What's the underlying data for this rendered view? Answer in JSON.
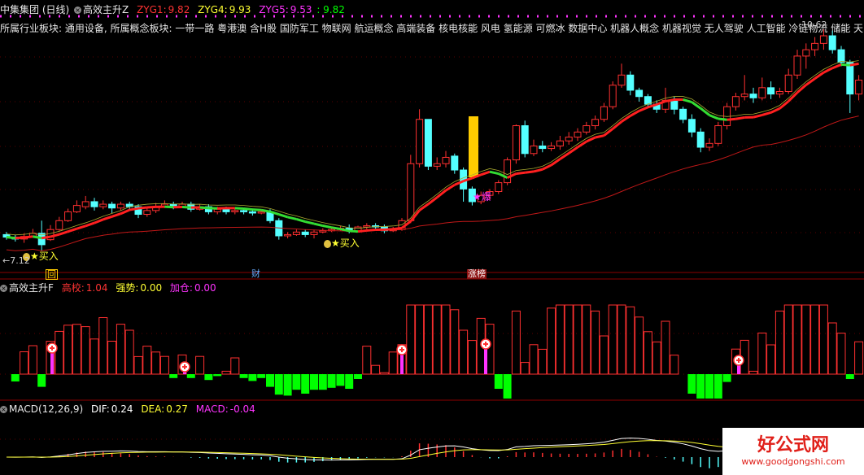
{
  "colors": {
    "bg": "#000000",
    "up": "#ff3030",
    "down": "#54ffff",
    "ma_up": "#ff2020",
    "ma_down": "#33dd33",
    "ma_slow": "#c01818",
    "yellow": "#ffff33",
    "magenta": "#ff33ff",
    "green_bar": "#00ff00",
    "white": "#ffffff",
    "dotted": "#ff33ff"
  },
  "main_panel": {
    "stock_name": "中集集团 (日线)",
    "indicator_name": "高效主升Z",
    "zyg1_label": "ZYG1:",
    "zyg1_value": "9.82",
    "zyg4_label": "ZYG4:",
    "zyg4_value": "9.93",
    "zyg5_label": "ZYG5:",
    "zyg5_value": "9.53",
    "extra_value": ": 9.82",
    "sector_text": "所属行业板块: 通用设备, 所属概念板块: 一带一路 粤港澳 含H股 国防军工 物联网 航运概念 高端装备 核电核能 风电 氢能源 可燃冰 数据中心 机器人概念 机器视觉 无人驾驶 人工智能 冷链物流 储能 天",
    "low_price_label": "←7.12",
    "high_price_label": "10.62",
    "signals": [
      {
        "text": "★买入",
        "id": "buy1"
      },
      {
        "text": "★买入",
        "id": "buy2"
      },
      {
        "text": "★爆",
        "id": "burst"
      }
    ],
    "event_tags": [
      {
        "text": "回",
        "id": "tag-hui"
      },
      {
        "text": "财",
        "id": "tag-cai"
      },
      {
        "text": "涨榜",
        "id": "tag-zhangbang"
      }
    ]
  },
  "mid_panel": {
    "indicator_name": "高效主升F",
    "gaoxiao_label": "高校:",
    "gaoxiao_value": "1.04",
    "qiangshi_label": "强势:",
    "qiangshi_value": "0.00",
    "jiacang_label": "加仓:",
    "jiacang_value": "0.00"
  },
  "macd_panel": {
    "indicator_name": "MACD(12,26,9)",
    "dif_label": "DIF:",
    "dif_value": "0.24",
    "dea_label": "DEA:",
    "dea_value": "0.27",
    "macd_label": "MACD:",
    "macd_value": "-0.04"
  },
  "watermark": {
    "title": "好公式网",
    "url": "www.goodgongshi.com"
  },
  "chart_data": {
    "type": "candlestick",
    "price_range": [
      7.0,
      10.7
    ],
    "candles": [
      [
        7.38,
        7.34,
        7.42,
        7.3
      ],
      [
        7.34,
        7.31,
        7.38,
        7.27
      ],
      [
        7.31,
        7.35,
        7.4,
        7.25
      ],
      [
        7.35,
        7.4,
        7.47,
        7.33
      ],
      [
        7.4,
        7.22,
        7.6,
        7.12
      ],
      [
        7.3,
        7.46,
        7.53,
        7.28
      ],
      [
        7.46,
        7.6,
        7.66,
        7.44
      ],
      [
        7.6,
        7.74,
        7.79,
        7.58
      ],
      [
        7.74,
        7.84,
        7.92,
        7.72
      ],
      [
        7.82,
        7.9,
        7.99,
        7.78
      ],
      [
        7.9,
        7.82,
        7.96,
        7.76
      ],
      [
        7.82,
        7.86,
        7.92,
        7.78
      ],
      [
        7.86,
        7.8,
        7.9,
        7.72
      ],
      [
        7.8,
        7.86,
        7.9,
        7.76
      ],
      [
        7.86,
        7.82,
        7.9,
        7.77
      ],
      [
        7.82,
        7.7,
        7.86,
        7.64
      ],
      [
        7.7,
        7.76,
        7.8,
        7.66
      ],
      [
        7.76,
        7.82,
        7.88,
        7.72
      ],
      [
        7.82,
        7.86,
        7.92,
        7.8
      ],
      [
        7.86,
        7.82,
        7.9,
        7.78
      ],
      [
        7.82,
        7.86,
        7.9,
        7.8
      ],
      [
        7.86,
        7.78,
        7.9,
        7.74
      ],
      [
        7.78,
        7.82,
        7.86,
        7.76
      ],
      [
        7.82,
        7.74,
        7.86,
        7.7
      ],
      [
        7.74,
        7.78,
        7.82,
        7.7
      ],
      [
        7.78,
        7.74,
        7.82,
        7.7
      ],
      [
        7.74,
        7.76,
        7.8,
        7.7
      ],
      [
        7.76,
        7.74,
        7.8,
        7.7
      ],
      [
        7.74,
        7.72,
        7.78,
        7.68
      ],
      [
        7.72,
        7.74,
        7.78,
        7.7
      ],
      [
        7.74,
        7.6,
        7.78,
        7.56
      ],
      [
        7.6,
        7.36,
        7.64,
        7.3
      ],
      [
        7.36,
        7.38,
        7.42,
        7.32
      ],
      [
        7.38,
        7.42,
        7.46,
        7.36
      ],
      [
        7.42,
        7.38,
        7.46,
        7.34
      ],
      [
        7.38,
        7.42,
        7.46,
        7.32
      ],
      [
        7.42,
        7.44,
        7.48,
        7.4
      ],
      [
        7.44,
        7.46,
        7.5,
        7.42
      ],
      [
        7.46,
        7.48,
        7.52,
        7.44
      ],
      [
        7.48,
        7.44,
        7.54,
        7.4
      ],
      [
        7.44,
        7.5,
        7.52,
        7.42
      ],
      [
        7.5,
        7.52,
        7.56,
        7.46
      ],
      [
        7.52,
        7.5,
        7.56,
        7.46
      ],
      [
        7.5,
        7.44,
        7.54,
        7.4
      ],
      [
        7.44,
        7.46,
        7.5,
        7.42
      ],
      [
        7.46,
        7.6,
        7.64,
        7.44
      ],
      [
        7.6,
        8.5,
        8.64,
        7.56
      ],
      [
        8.5,
        9.2,
        9.36,
        8.44
      ],
      [
        9.2,
        8.46,
        9.2,
        8.4
      ],
      [
        8.46,
        8.5,
        8.6,
        8.4
      ],
      [
        8.5,
        8.6,
        8.7,
        8.44
      ],
      [
        8.62,
        8.4,
        8.66,
        8.34
      ],
      [
        8.4,
        8.1,
        8.44,
        7.9
      ],
      [
        8.1,
        7.9,
        8.14,
        7.84
      ],
      [
        7.9,
        8.0,
        8.06,
        7.86
      ],
      [
        8.0,
        8.06,
        8.1,
        7.92
      ],
      [
        8.06,
        8.2,
        8.24,
        8.02
      ],
      [
        8.2,
        8.56,
        8.6,
        8.16
      ],
      [
        8.56,
        9.1,
        9.12,
        8.5
      ],
      [
        9.1,
        8.66,
        9.18,
        8.6
      ],
      [
        8.66,
        8.78,
        8.88,
        8.62
      ],
      [
        8.78,
        8.74,
        8.86,
        8.68
      ],
      [
        8.74,
        8.78,
        8.84,
        8.7
      ],
      [
        8.78,
        8.86,
        8.94,
        8.72
      ],
      [
        8.86,
        8.92,
        9.0,
        8.8
      ],
      [
        8.92,
        9.0,
        9.06,
        8.86
      ],
      [
        9.0,
        9.1,
        9.16,
        8.96
      ],
      [
        9.1,
        9.2,
        9.26,
        9.04
      ],
      [
        9.2,
        9.4,
        9.46,
        9.16
      ],
      [
        9.4,
        9.74,
        9.8,
        9.36
      ],
      [
        9.74,
        9.9,
        10.08,
        9.7
      ],
      [
        9.9,
        9.66,
        9.96,
        9.58
      ],
      [
        9.66,
        9.56,
        9.7,
        9.48
      ],
      [
        9.56,
        9.44,
        9.6,
        9.38
      ],
      [
        9.44,
        9.36,
        9.5,
        9.3
      ],
      [
        9.36,
        9.5,
        9.7,
        9.3
      ],
      [
        9.5,
        9.36,
        9.56,
        9.28
      ],
      [
        9.36,
        9.2,
        9.4,
        9.14
      ],
      [
        9.2,
        9.0,
        9.28,
        8.92
      ],
      [
        9.0,
        8.76,
        9.06,
        8.68
      ],
      [
        8.76,
        8.82,
        8.9,
        8.7
      ],
      [
        8.82,
        9.1,
        9.16,
        8.78
      ],
      [
        9.1,
        9.4,
        9.46,
        9.04
      ],
      [
        9.4,
        9.56,
        9.62,
        9.34
      ],
      [
        9.56,
        9.6,
        9.9,
        9.5
      ],
      [
        9.6,
        9.54,
        9.7,
        9.46
      ],
      [
        9.54,
        9.7,
        9.86,
        9.5
      ],
      [
        9.7,
        9.6,
        9.8,
        9.52
      ],
      [
        9.6,
        9.64,
        9.7,
        9.54
      ],
      [
        9.64,
        9.9,
        10.0,
        9.6
      ],
      [
        9.9,
        10.2,
        10.3,
        9.84
      ],
      [
        10.2,
        10.3,
        10.4,
        10.0
      ],
      [
        10.3,
        10.4,
        10.5,
        10.2
      ],
      [
        10.4,
        10.52,
        10.62,
        10.3
      ],
      [
        10.52,
        10.3,
        10.6,
        10.24
      ],
      [
        10.3,
        10.1,
        10.36,
        10.04
      ],
      [
        10.1,
        9.6,
        10.14,
        9.3
      ],
      [
        9.6,
        9.82,
        9.9,
        9.5
      ]
    ]
  }
}
